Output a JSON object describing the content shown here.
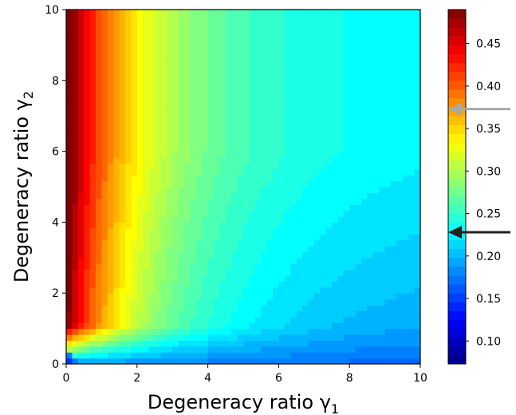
{
  "chart_data": {
    "type": "heatmap",
    "xlabel": "Degeneracy ratio γ",
    "xlabel_sub": "1",
    "ylabel": "Degeneracy ratio γ",
    "ylabel_sub": "2",
    "xlim": [
      0,
      10
    ],
    "ylim": [
      0,
      10
    ],
    "x_ticks": [
      0,
      2,
      4,
      6,
      8,
      10
    ],
    "y_ticks": [
      0,
      2,
      4,
      6,
      8,
      10
    ],
    "colormap": "jet",
    "colorbar": {
      "range": [
        0.073,
        0.49
      ],
      "ticks": [
        "0.10",
        "0.15",
        "0.20",
        "0.25",
        "0.30",
        "0.35",
        "0.40",
        "0.45"
      ],
      "tick_values": [
        0.1,
        0.15,
        0.2,
        0.25,
        0.3,
        0.35,
        0.4,
        0.45
      ],
      "discrete_levels": 40
    },
    "markers": [
      {
        "value": 0.373,
        "color": "#a9a9a9",
        "shape": "arrow-left"
      },
      {
        "value": 0.228,
        "color": "#222222",
        "shape": "arrow-left"
      }
    ]
  }
}
